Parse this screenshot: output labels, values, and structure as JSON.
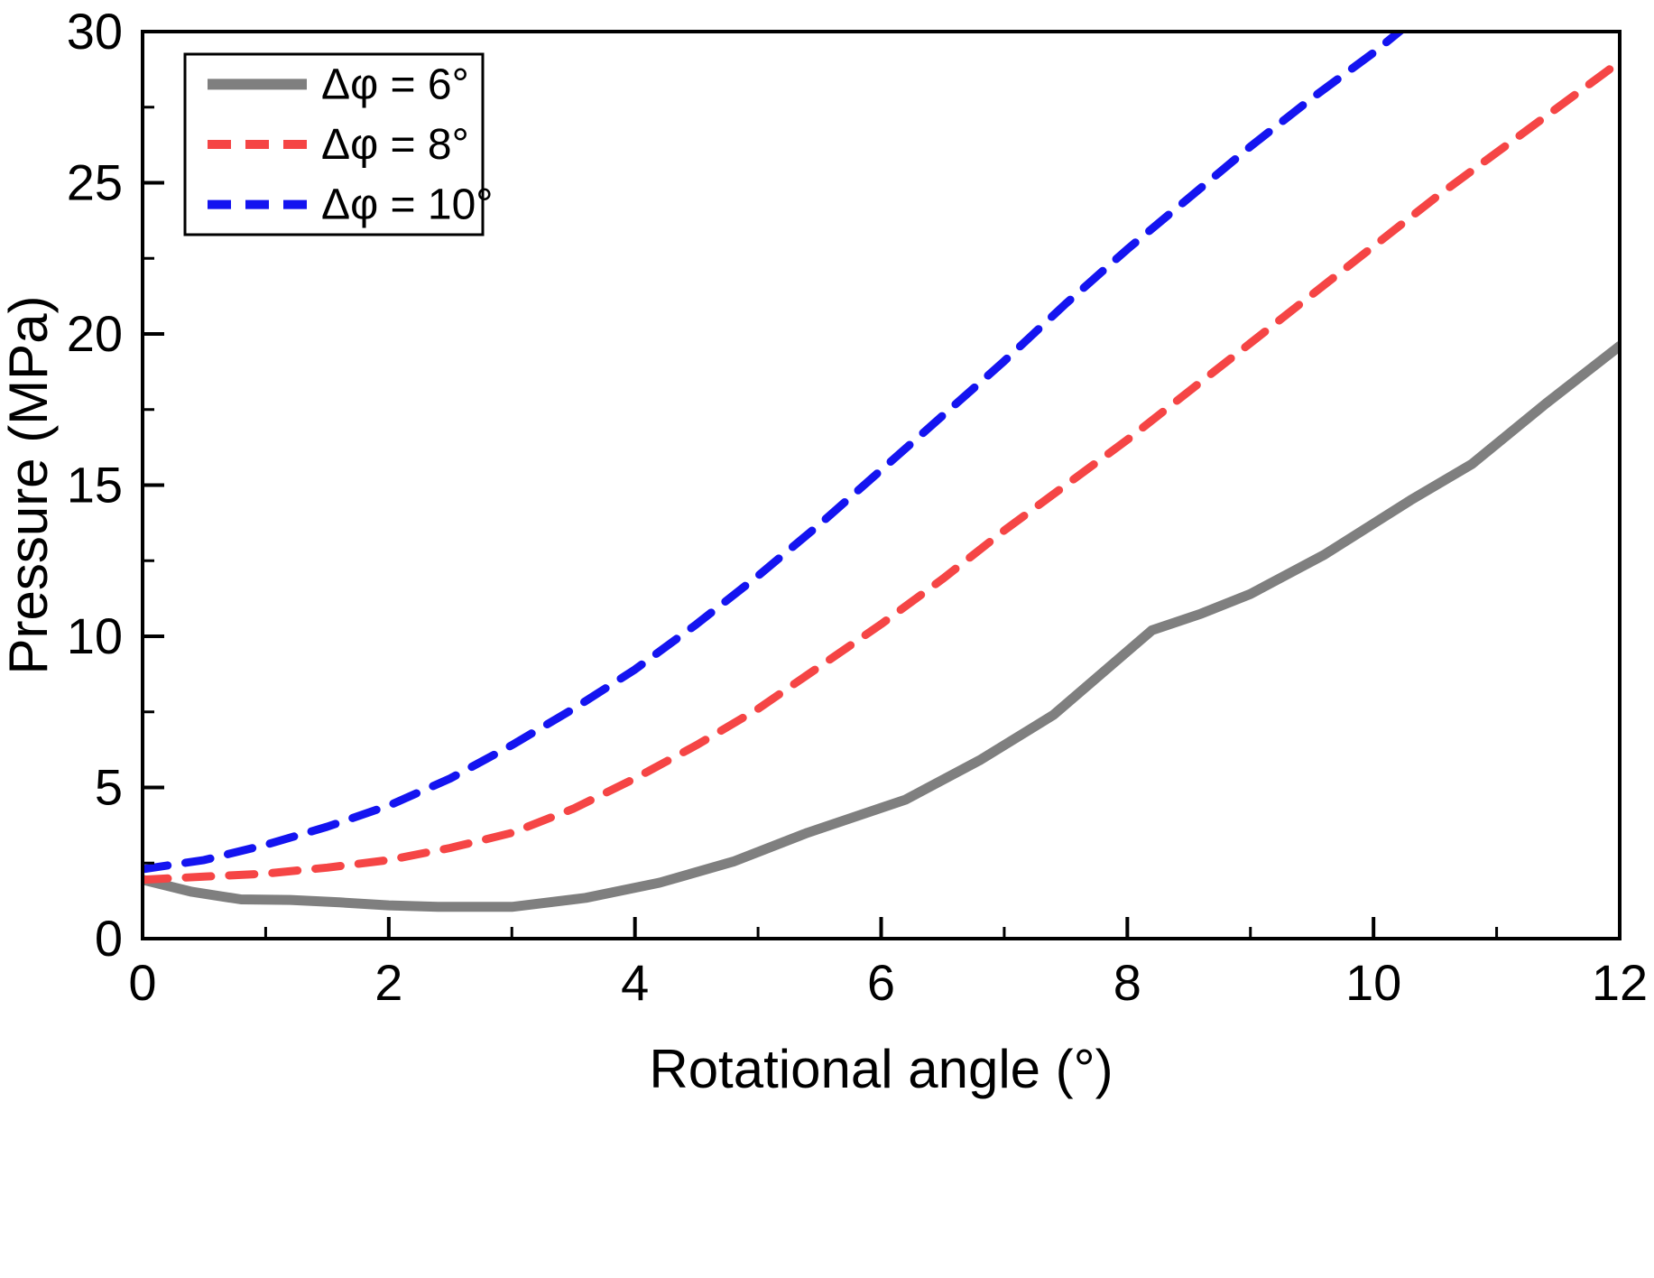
{
  "figure": {
    "title": "",
    "xlabel": "Rotational angle (°)",
    "ylabel": "Pressure (MPa)"
  },
  "colors": {
    "series_gray": "#7f7f7f",
    "series_red": "#f54545",
    "series_blue": "#1414f0",
    "axis": "#000000",
    "background": "#ffffff"
  },
  "chart_data": {
    "type": "line",
    "title": "",
    "xlabel": "Rotational angle (°)",
    "ylabel": "Pressure (MPa)",
    "xlim": [
      0,
      12
    ],
    "ylim": [
      0,
      30
    ],
    "xticks": [
      0,
      2,
      4,
      6,
      8,
      10,
      12
    ],
    "yticks": [
      0,
      5,
      10,
      15,
      20,
      25,
      30
    ],
    "x_minor_ticks": [
      1,
      3,
      5,
      7,
      9,
      11
    ],
    "y_minor_ticks": [
      2.5,
      7.5,
      12.5,
      17.5,
      22.5,
      27.5
    ],
    "grid": false,
    "legend_position": "top-left",
    "series": [
      {
        "name": "Δφ = 6°",
        "color": "#7f7f7f",
        "style": "solid",
        "width": 11,
        "x": [
          0,
          0.4,
          0.8,
          1.2,
          1.6,
          2.0,
          2.4,
          3.0,
          3.6,
          4.2,
          4.8,
          5.4,
          6.2,
          6.8,
          7.4,
          8.2,
          8.6,
          9.0,
          9.6,
          10.3,
          10.8,
          11.4,
          12.0
        ],
        "y": [
          1.95,
          1.55,
          1.3,
          1.28,
          1.2,
          1.1,
          1.05,
          1.05,
          1.35,
          1.85,
          2.55,
          3.5,
          4.6,
          5.9,
          7.4,
          10.2,
          10.75,
          11.4,
          12.7,
          14.5,
          15.7,
          17.7,
          19.6
        ]
      },
      {
        "name": "Δφ = 8°",
        "color": "#f54545",
        "style": "dashed",
        "width": 9,
        "x": [
          0,
          0.5,
          1,
          1.5,
          2,
          2.5,
          3,
          3.5,
          4,
          4.5,
          5,
          5.5,
          6,
          6.5,
          7,
          7.5,
          8,
          8.5,
          9,
          9.5,
          10,
          10.5,
          11,
          11.5,
          12
        ],
        "y": [
          1.95,
          2.05,
          2.15,
          2.35,
          2.6,
          3.0,
          3.5,
          4.3,
          5.3,
          6.4,
          7.6,
          9.0,
          10.4,
          11.9,
          13.5,
          15.0,
          16.5,
          18.1,
          19.7,
          21.3,
          22.9,
          24.5,
          26.0,
          27.5,
          29.0
        ]
      },
      {
        "name": "Δφ = 10°",
        "color": "#1414f0",
        "style": "dashed",
        "width": 9,
        "x": [
          0,
          0.5,
          1,
          1.5,
          2,
          2.5,
          3,
          3.5,
          4,
          4.5,
          5,
          5.5,
          6,
          6.5,
          7,
          7.5,
          8,
          8.5,
          9,
          9.5,
          10,
          10.3
        ],
        "y": [
          2.3,
          2.6,
          3.1,
          3.7,
          4.4,
          5.3,
          6.4,
          7.6,
          8.9,
          10.4,
          12.0,
          13.7,
          15.5,
          17.3,
          19.1,
          21.0,
          22.8,
          24.5,
          26.2,
          27.8,
          29.3,
          30.3
        ]
      }
    ]
  }
}
